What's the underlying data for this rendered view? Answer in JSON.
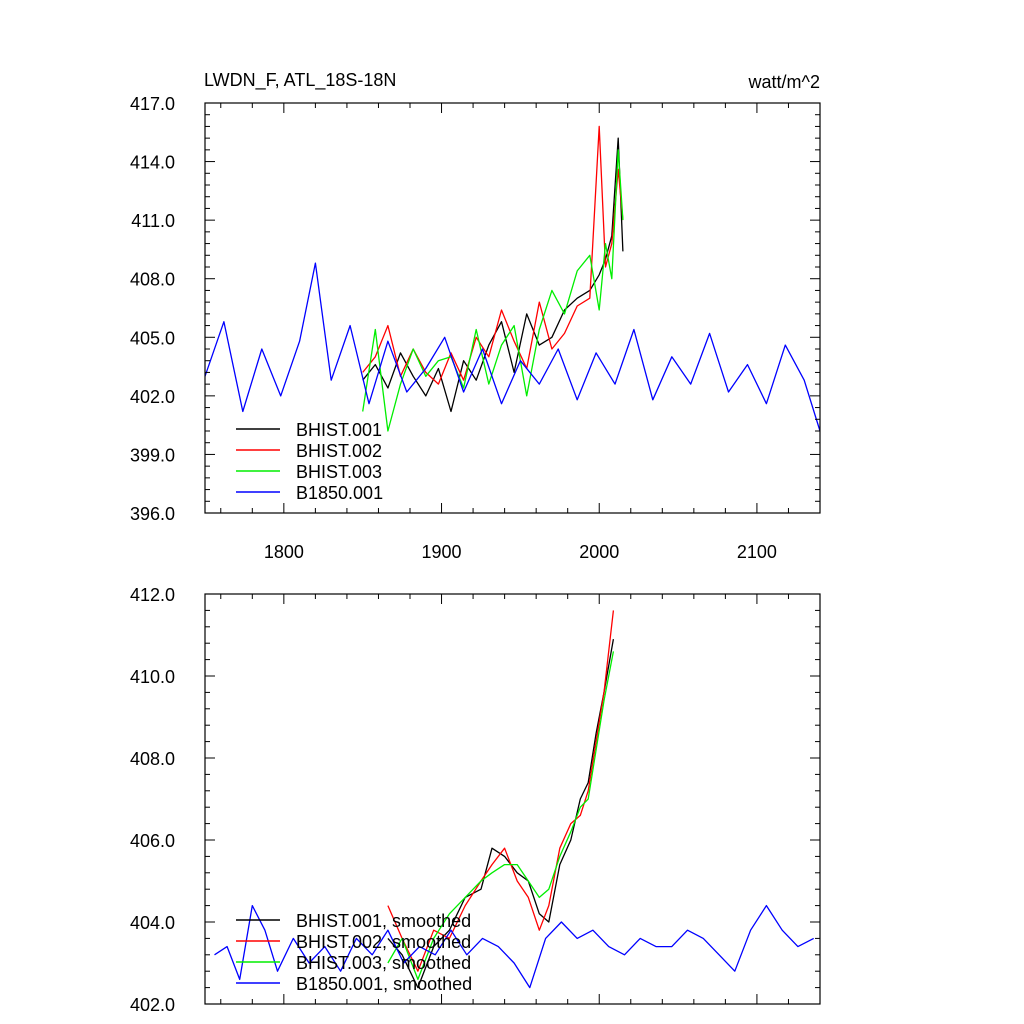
{
  "chart_data": [
    {
      "type": "line",
      "title": "LWDN_F, ATL_18S-18N",
      "units": "watt/m^2",
      "xlim": [
        1750,
        2140
      ],
      "ylim": [
        396,
        417
      ],
      "x_ticks": [
        1800,
        1900,
        2000,
        2100
      ],
      "x_tick_labels": [
        "1800",
        "1900",
        "2000",
        "2100"
      ],
      "y_ticks": [
        396,
        399,
        402,
        405,
        408,
        411,
        414,
        417
      ],
      "y_tick_labels": [
        "396.0",
        "399.0",
        "402.0",
        "405.0",
        "408.0",
        "411.0",
        "414.0",
        "417.0"
      ],
      "legend_position": "bottom-left",
      "series": [
        {
          "name": "BHIST.001",
          "color": "#000000",
          "x": [
            1850,
            1858,
            1866,
            1874,
            1882,
            1890,
            1898,
            1906,
            1914,
            1922,
            1930,
            1938,
            1946,
            1954,
            1962,
            1970,
            1978,
            1986,
            1994,
            2000,
            2004,
            2008,
            2012,
            2015
          ],
          "y": [
            402.8,
            403.6,
            402.4,
            404.2,
            403.0,
            402.0,
            403.4,
            401.2,
            403.8,
            402.8,
            404.6,
            405.8,
            403.2,
            406.2,
            404.6,
            405.0,
            406.4,
            407.0,
            407.4,
            408.2,
            409.0,
            410.2,
            415.2,
            409.4
          ]
        },
        {
          "name": "BHIST.002",
          "color": "#ff0000",
          "x": [
            1850,
            1858,
            1866,
            1874,
            1882,
            1890,
            1898,
            1906,
            1914,
            1922,
            1930,
            1938,
            1946,
            1954,
            1962,
            1970,
            1978,
            1986,
            1994,
            2000,
            2004,
            2008,
            2012,
            2015
          ],
          "y": [
            403.2,
            404.0,
            405.6,
            403.0,
            404.4,
            403.2,
            402.6,
            404.2,
            402.8,
            405.0,
            404.0,
            406.4,
            404.8,
            403.4,
            406.8,
            404.4,
            405.2,
            406.6,
            407.0,
            415.8,
            408.6,
            409.8,
            413.6,
            411.0
          ]
        },
        {
          "name": "BHIST.003",
          "color": "#00ee00",
          "x": [
            1850,
            1858,
            1866,
            1874,
            1882,
            1890,
            1898,
            1906,
            1914,
            1922,
            1930,
            1938,
            1946,
            1954,
            1962,
            1970,
            1978,
            1986,
            1994,
            2000,
            2004,
            2008,
            2012,
            2015
          ],
          "y": [
            401.2,
            405.4,
            400.2,
            402.6,
            404.4,
            403.0,
            403.8,
            404.0,
            402.4,
            405.4,
            402.6,
            404.6,
            405.6,
            402.0,
            405.4,
            407.4,
            406.2,
            408.4,
            409.2,
            406.4,
            409.8,
            408.0,
            414.6,
            411.0
          ]
        },
        {
          "name": "B1850.001",
          "color": "#0000ff",
          "x": [
            1750,
            1762,
            1774,
            1786,
            1798,
            1810,
            1820,
            1830,
            1842,
            1854,
            1866,
            1878,
            1890,
            1902,
            1914,
            1926,
            1938,
            1950,
            1962,
            1974,
            1986,
            1998,
            2010,
            2022,
            2034,
            2046,
            2058,
            2070,
            2082,
            2094,
            2106,
            2118,
            2130,
            2140
          ],
          "y": [
            403.0,
            405.8,
            401.2,
            404.4,
            402.0,
            404.8,
            408.8,
            402.8,
            405.6,
            401.6,
            404.8,
            402.2,
            403.4,
            405.0,
            402.2,
            404.4,
            401.6,
            403.8,
            402.6,
            404.4,
            401.8,
            404.2,
            402.6,
            405.4,
            401.8,
            404.0,
            402.6,
            405.2,
            402.2,
            403.6,
            401.6,
            404.6,
            402.8,
            400.2
          ]
        }
      ]
    },
    {
      "type": "line",
      "xlim": [
        1750,
        2140
      ],
      "ylim": [
        402,
        412
      ],
      "x_ticks": [
        1800,
        1900,
        2000,
        2100
      ],
      "y_ticks": [
        402,
        404,
        406,
        408,
        410,
        412
      ],
      "y_tick_labels": [
        "402.0",
        "404.0",
        "406.0",
        "408.0",
        "410.0",
        "412.0"
      ],
      "legend_position": "bottom-left",
      "series": [
        {
          "name": "BHIST.001, smoothed",
          "color": "#000000",
          "x": [
            1866,
            1875,
            1885,
            1895,
            1905,
            1915,
            1925,
            1932,
            1940,
            1948,
            1955,
            1962,
            1968,
            1975,
            1982,
            1988,
            1993,
            1998,
            2003,
            2009
          ],
          "y": [
            403.6,
            403.2,
            402.4,
            403.4,
            403.8,
            404.6,
            404.8,
            405.8,
            405.6,
            405.2,
            405.0,
            404.2,
            404.0,
            405.4,
            406.0,
            407.0,
            407.4,
            408.6,
            409.6,
            410.9
          ]
        },
        {
          "name": "BHIST.002, smoothed",
          "color": "#ff0000",
          "x": [
            1866,
            1875,
            1885,
            1895,
            1905,
            1915,
            1925,
            1932,
            1940,
            1948,
            1955,
            1962,
            1968,
            1975,
            1982,
            1988,
            1993,
            1998,
            2003,
            2009
          ],
          "y": [
            404.4,
            403.6,
            402.8,
            403.8,
            403.6,
            404.4,
            405.0,
            405.4,
            405.8,
            405.0,
            404.6,
            403.8,
            404.4,
            405.8,
            406.4,
            406.6,
            407.2,
            408.4,
            409.6,
            411.6
          ]
        },
        {
          "name": "BHIST.003, smoothed",
          "color": "#00ee00",
          "x": [
            1866,
            1875,
            1885,
            1895,
            1905,
            1915,
            1925,
            1932,
            1940,
            1948,
            1955,
            1962,
            1968,
            1975,
            1982,
            1988,
            1993,
            1998,
            2003,
            2009
          ],
          "y": [
            403.0,
            403.6,
            402.6,
            403.6,
            404.2,
            404.6,
            405.0,
            405.2,
            405.4,
            405.4,
            405.0,
            404.6,
            404.8,
            405.6,
            406.2,
            406.8,
            407.0,
            408.2,
            409.4,
            410.6
          ]
        },
        {
          "name": "B1850.001, smoothed",
          "color": "#0000ff",
          "x": [
            1756,
            1764,
            1772,
            1780,
            1788,
            1796,
            1806,
            1816,
            1826,
            1836,
            1846,
            1856,
            1866,
            1876,
            1886,
            1896,
            1906,
            1916,
            1926,
            1936,
            1946,
            1956,
            1966,
            1976,
            1986,
            1996,
            2006,
            2016,
            2026,
            2036,
            2046,
            2056,
            2066,
            2076,
            2086,
            2096,
            2106,
            2116,
            2126,
            2136
          ],
          "y": [
            403.2,
            403.4,
            402.6,
            404.4,
            403.8,
            402.8,
            403.6,
            403.0,
            403.4,
            402.8,
            403.6,
            403.2,
            403.8,
            403.0,
            403.4,
            403.2,
            403.8,
            403.2,
            403.6,
            403.4,
            403.0,
            402.4,
            403.6,
            404.0,
            403.6,
            403.8,
            403.4,
            403.2,
            403.6,
            403.4,
            403.4,
            403.8,
            403.6,
            403.2,
            402.8,
            403.8,
            404.4,
            403.8,
            403.4,
            403.6
          ]
        }
      ]
    }
  ]
}
